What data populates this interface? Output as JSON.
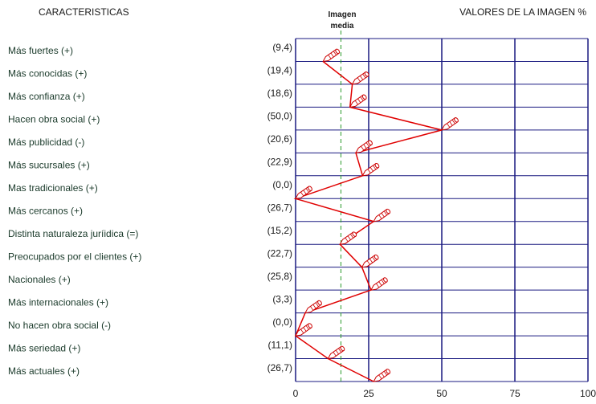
{
  "header": {
    "left_title": "CARACTERISTICAS",
    "right_title": "VALORES DE LA IMAGEN %",
    "reference_label_line1": "Imagen",
    "reference_label_line2": "media"
  },
  "chart_data": {
    "type": "line",
    "categories": [
      "Más fuertes (+)",
      "Más conocidas (+)",
      "Más confianza (+)",
      "Hacen obra social (+)",
      "Más publicidad (-)",
      "Más sucursales (+)",
      "Mas tradicionales (+)",
      "Más cercanos (+)",
      "Distinta naturaleza juríidica (=)",
      "Preocupados por el clientes (+)",
      "Nacionales (+)",
      "Más internacionales (+)",
      "No hacen obra social (-)",
      "Más seriedad (+)",
      "Más actuales (+)"
    ],
    "value_labels": [
      "(9,4)",
      "(19,4)",
      "(18,6)",
      "(50,0)",
      "(20,6)",
      "(22,9)",
      "(0,0)",
      "(26,7)",
      "(15,2)",
      "(22,7)",
      "(25,8)",
      "(3,3)",
      "(0,0)",
      "(11,1)",
      "(26,7)"
    ],
    "values": [
      9.4,
      19.4,
      18.6,
      50.0,
      20.6,
      22.9,
      0.0,
      26.7,
      15.2,
      22.7,
      25.8,
      3.3,
      0.0,
      11.1,
      26.7
    ],
    "reference_value": 15.5,
    "xlim": [
      0,
      100
    ],
    "xticks": [
      "0",
      "25",
      "50",
      "75",
      "100"
    ],
    "orientation": "horizontal-profile",
    "grid": true,
    "colors": {
      "line": "#e00000",
      "grid": "#1a1a80",
      "reference": "#2a9a2a",
      "marker": "#cc0000"
    }
  }
}
